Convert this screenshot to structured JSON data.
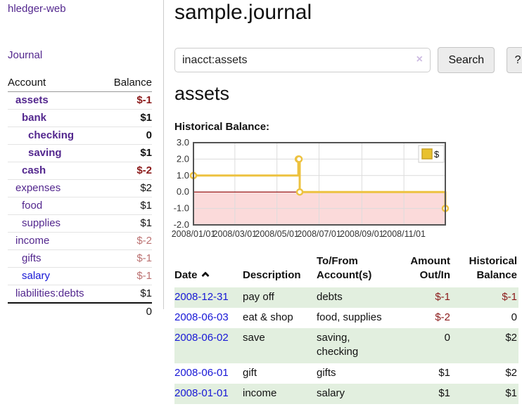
{
  "app": {
    "brand": "hledger-web",
    "nav_journal": "Journal"
  },
  "sidebar": {
    "header": {
      "account": "Account",
      "balance": "Balance"
    },
    "accounts": [
      {
        "name": "assets",
        "balance": "$-1",
        "level": 1,
        "bold": true
      },
      {
        "name": "bank",
        "balance": "$1",
        "level": 2,
        "bold": true
      },
      {
        "name": "checking",
        "balance": "0",
        "level": 3,
        "bold": true
      },
      {
        "name": "saving",
        "balance": "$1",
        "level": 3,
        "bold": true
      },
      {
        "name": "cash",
        "balance": "$-2",
        "level": 2,
        "bold": true
      },
      {
        "name": "expenses",
        "balance": "$2",
        "level": 1,
        "bold": false
      },
      {
        "name": "food",
        "balance": "$1",
        "level": 2,
        "bold": false
      },
      {
        "name": "supplies",
        "balance": "$1",
        "level": 2,
        "bold": false
      },
      {
        "name": "income",
        "balance": "$-2",
        "level": 1,
        "bold": false
      },
      {
        "name": "gifts",
        "balance": "$-1",
        "level": 2,
        "bold": false
      },
      {
        "name": "salary",
        "balance": "$-1",
        "level": 2,
        "bold": false,
        "blue": true
      },
      {
        "name": "liabilities:debts",
        "balance": "$1",
        "level": 1,
        "bold": false
      }
    ],
    "total": "0"
  },
  "header": {
    "title": "sample.journal"
  },
  "search": {
    "value": "inacct:assets",
    "clear_label": "×",
    "button_label": "Search",
    "help_label": "?"
  },
  "account_page": {
    "title": "assets",
    "chart_label": "Historical Balance:"
  },
  "chart_data": {
    "type": "line",
    "title": "Historical Balance",
    "step": true,
    "xlim": [
      "2008-01-01",
      "2008-12-31"
    ],
    "ylim": [
      -2,
      3
    ],
    "x_ticks": [
      "2008/01/01",
      "2008/03/01",
      "2008/05/01",
      "2008/07/01",
      "2008/09/01",
      "2008/11/01"
    ],
    "y_ticks": [
      "3.0",
      "2.0",
      "1.0",
      "0.0",
      "-1.0",
      "-2.0"
    ],
    "grid": true,
    "legend_position": "top-right",
    "series": [
      {
        "name": "$",
        "color": "#edc240",
        "points": [
          [
            "2008-01-01",
            1
          ],
          [
            "2008-06-01",
            2
          ],
          [
            "2008-06-02",
            2
          ],
          [
            "2008-06-03",
            0
          ],
          [
            "2008-12-31",
            -1
          ]
        ]
      }
    ],
    "negative_region_color": "#fbdada",
    "zero_line_color": "#8b0000"
  },
  "register": {
    "columns": {
      "date": "Date",
      "description": "Description",
      "accounts": "To/From Account(s)",
      "amount": "Amount Out/In",
      "balance": "Historical Balance"
    },
    "rows": [
      {
        "date": "2008-12-31",
        "description": "pay off",
        "accounts": "debts",
        "amount": "$-1",
        "balance": "$-1"
      },
      {
        "date": "2008-06-03",
        "description": "eat & shop",
        "accounts": "food, supplies",
        "amount": "$-2",
        "balance": "0"
      },
      {
        "date": "2008-06-02",
        "description": "save",
        "accounts": "saving, checking",
        "amount": "0",
        "balance": "$2"
      },
      {
        "date": "2008-06-01",
        "description": "gift",
        "accounts": "gifts",
        "amount": "$1",
        "balance": "$2"
      },
      {
        "date": "2008-01-01",
        "description": "income",
        "accounts": "salary",
        "amount": "$1",
        "balance": "$1"
      }
    ]
  }
}
